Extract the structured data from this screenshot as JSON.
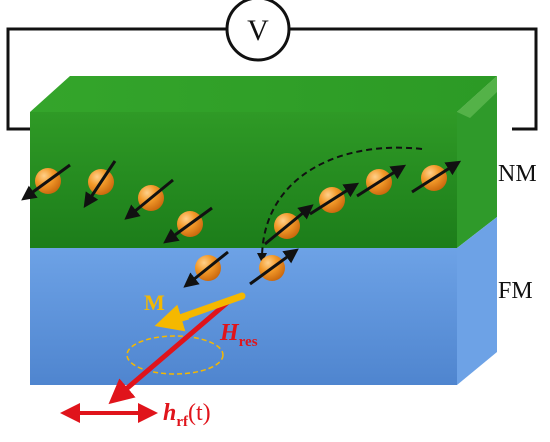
{
  "diagram": {
    "voltmeter": {
      "label": "V"
    },
    "layers": {
      "top": {
        "label": "NM",
        "color": "#1f8f1f"
      },
      "bottom": {
        "label": "FM",
        "color": "#5b8fd6"
      }
    },
    "vectors": {
      "magnetization": {
        "label": "M",
        "color": "#f5b800"
      },
      "resonance_field": {
        "label_main": "H",
        "label_sub": "res",
        "color": "#e0141b"
      },
      "rf_field": {
        "label_main": "h",
        "label_sub": "rf",
        "label_suffix": "(t)",
        "color": "#e0141b"
      }
    },
    "particle_color": "#f08a1c"
  }
}
